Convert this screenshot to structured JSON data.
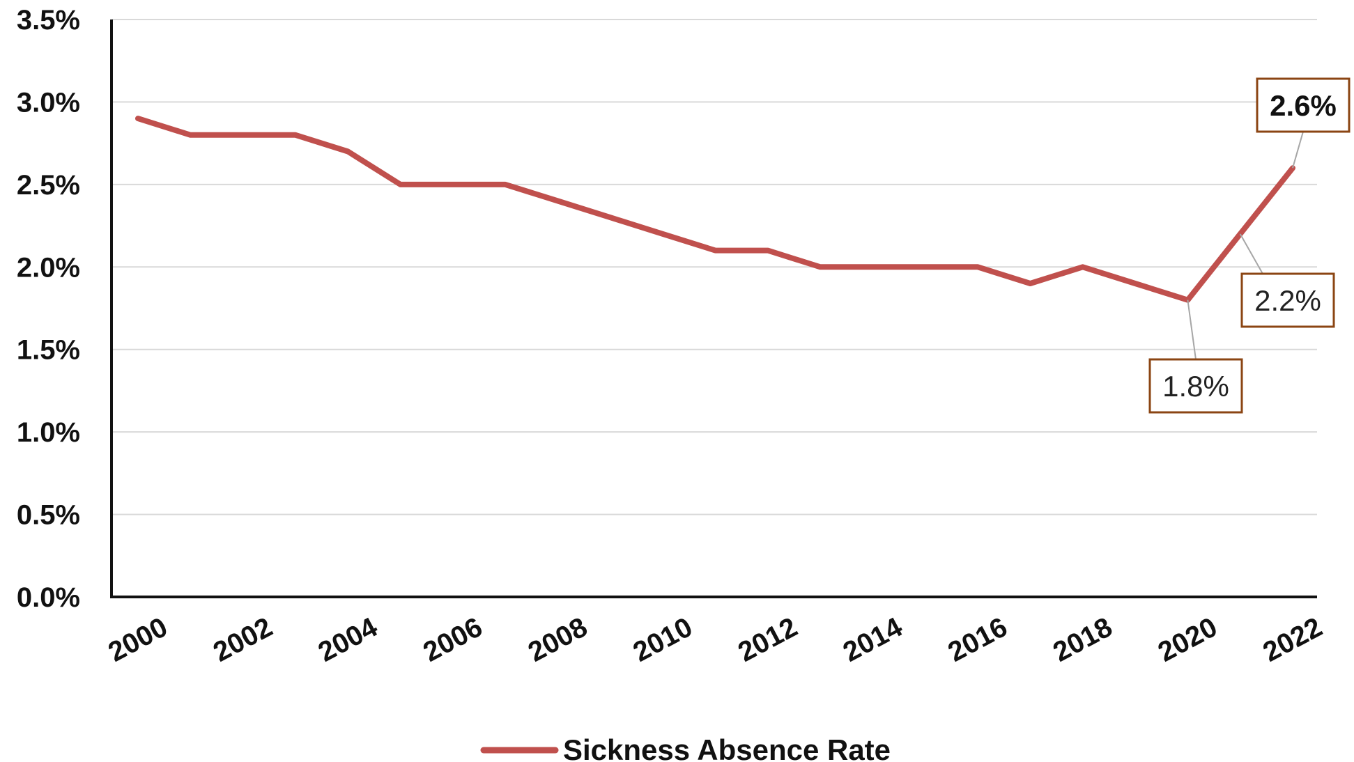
{
  "chart_data": {
    "type": "line",
    "x": [
      2000,
      2001,
      2002,
      2003,
      2004,
      2005,
      2006,
      2007,
      2008,
      2009,
      2010,
      2011,
      2012,
      2013,
      2014,
      2015,
      2016,
      2017,
      2018,
      2019,
      2020,
      2021,
      2022
    ],
    "x_tick_labels": [
      "2000",
      "2002",
      "2004",
      "2006",
      "2008",
      "2010",
      "2012",
      "2014",
      "2016",
      "2018",
      "2020",
      "2022"
    ],
    "y_tick_labels": [
      "0.0%",
      "0.5%",
      "1.0%",
      "1.5%",
      "2.0%",
      "2.5%",
      "3.0%",
      "3.5%"
    ],
    "ylim": [
      0,
      3.5
    ],
    "grid": true,
    "legend_position": "bottom",
    "series": [
      {
        "name": "Sickness Absence Rate",
        "color": "#c0504d",
        "values": [
          2.9,
          2.8,
          2.8,
          2.8,
          2.7,
          2.5,
          2.5,
          2.5,
          2.4,
          2.3,
          2.2,
          2.1,
          2.1,
          2.0,
          2.0,
          2.0,
          2.0,
          1.9,
          2.0,
          1.9,
          1.8,
          2.2,
          2.6
        ]
      }
    ],
    "annotations": [
      {
        "x": 2022,
        "y": 2.6,
        "label": "2.6%",
        "bold": true
      },
      {
        "x": 2021,
        "y": 2.2,
        "label": "2.2%",
        "bold": false
      },
      {
        "x": 2020,
        "y": 1.8,
        "label": "1.8%",
        "bold": false
      }
    ],
    "annotation_border_color": "#8b4513",
    "title": "",
    "xlabel": "",
    "ylabel": ""
  }
}
